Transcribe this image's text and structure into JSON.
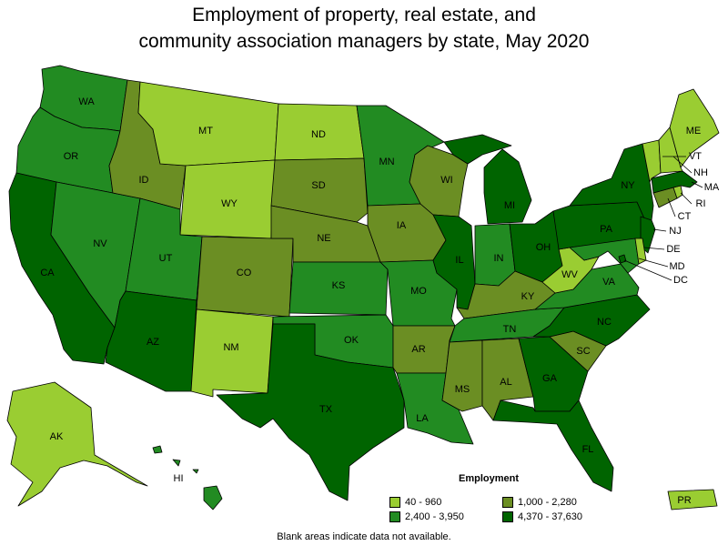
{
  "title": {
    "line1": "Employment of property, real estate, and",
    "line2": "community association managers by state, May 2020"
  },
  "legend": {
    "title": "Employment",
    "items": [
      {
        "label": "40 - 960",
        "color": "#9acd32"
      },
      {
        "label": "1,000 - 2,280",
        "color": "#6b8e23"
      },
      {
        "label": "2,400 - 3,950",
        "color": "#228b22"
      },
      {
        "label": "4,370 - 37,630",
        "color": "#006400"
      }
    ]
  },
  "footnote": "Blank areas indicate data not available.",
  "states": {
    "WA": {
      "label": "WA",
      "class": 2
    },
    "OR": {
      "label": "OR",
      "class": 2
    },
    "CA": {
      "label": "CA",
      "class": 3
    },
    "NV": {
      "label": "NV",
      "class": 2
    },
    "ID": {
      "label": "ID",
      "class": 1
    },
    "MT": {
      "label": "MT",
      "class": 0
    },
    "WY": {
      "label": "WY",
      "class": 0
    },
    "UT": {
      "label": "UT",
      "class": 2
    },
    "AZ": {
      "label": "AZ",
      "class": 3
    },
    "CO": {
      "label": "CO",
      "class": 1
    },
    "NM": {
      "label": "NM",
      "class": 0
    },
    "ND": {
      "label": "ND",
      "class": 0
    },
    "SD": {
      "label": "SD",
      "class": 1
    },
    "NE": {
      "label": "NE",
      "class": 1
    },
    "KS": {
      "label": "KS",
      "class": 2
    },
    "OK": {
      "label": "OK",
      "class": 2
    },
    "TX": {
      "label": "TX",
      "class": 3
    },
    "MN": {
      "label": "MN",
      "class": 2
    },
    "IA": {
      "label": "IA",
      "class": 1
    },
    "MO": {
      "label": "MO",
      "class": 2
    },
    "AR": {
      "label": "AR",
      "class": 1
    },
    "LA": {
      "label": "LA",
      "class": 2
    },
    "WI": {
      "label": "WI",
      "class": 1
    },
    "IL": {
      "label": "IL",
      "class": 3
    },
    "MI": {
      "label": "MI",
      "class": 3
    },
    "IN": {
      "label": "IN",
      "class": 2
    },
    "OH": {
      "label": "OH",
      "class": 3
    },
    "KY": {
      "label": "KY",
      "class": 1
    },
    "TN": {
      "label": "TN",
      "class": 2
    },
    "MS": {
      "label": "MS",
      "class": 1
    },
    "AL": {
      "label": "AL",
      "class": 1
    },
    "GA": {
      "label": "GA",
      "class": 3
    },
    "FL": {
      "label": "FL",
      "class": 3
    },
    "SC": {
      "label": "SC",
      "class": 1
    },
    "NC": {
      "label": "NC",
      "class": 3
    },
    "VA": {
      "label": "VA",
      "class": 2
    },
    "WV": {
      "label": "WV",
      "class": 0
    },
    "PA": {
      "label": "PA",
      "class": 3
    },
    "NY": {
      "label": "NY",
      "class": 3
    },
    "NJ": {
      "label": "NJ",
      "class": 3
    },
    "DE": {
      "label": "DE",
      "class": 0
    },
    "MD": {
      "label": "MD",
      "class": 2
    },
    "DC": {
      "label": "DC",
      "class": 3
    },
    "CT": {
      "label": "CT",
      "class": 1
    },
    "RI": {
      "label": "RI",
      "class": 0
    },
    "MA": {
      "label": "MA",
      "class": 3
    },
    "VT": {
      "label": "VT",
      "class": 0
    },
    "NH": {
      "label": "NH",
      "class": 0
    },
    "ME": {
      "label": "ME",
      "class": 0
    },
    "AK": {
      "label": "AK",
      "class": 0
    },
    "HI": {
      "label": "HI",
      "class": 2
    },
    "PR": {
      "label": "PR",
      "class": 0
    }
  }
}
